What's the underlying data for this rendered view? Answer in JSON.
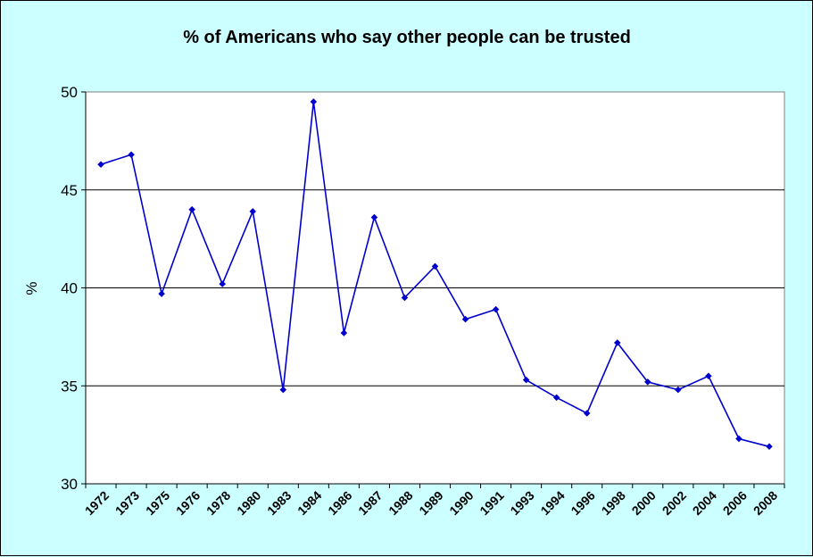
{
  "chart_data": {
    "type": "line",
    "title": "% of Americans who say other people can be trusted",
    "xlabel": "",
    "ylabel": "%",
    "ylim": [
      30,
      50
    ],
    "yticks": [
      30,
      35,
      40,
      45,
      50
    ],
    "grid": true,
    "legend": "none",
    "categories": [
      "1972",
      "1973",
      "1975",
      "1976",
      "1978",
      "1980",
      "1983",
      "1984",
      "1986",
      "1987",
      "1988",
      "1989",
      "1990",
      "1991",
      "1993",
      "1994",
      "1996",
      "1998",
      "2000",
      "2002",
      "2004",
      "2006",
      "2008"
    ],
    "series": [
      {
        "values": [
          46.3,
          46.8,
          39.7,
          44.0,
          40.2,
          43.9,
          34.8,
          49.5,
          37.7,
          43.6,
          39.5,
          41.1,
          38.4,
          38.9,
          35.3,
          34.4,
          33.6,
          37.2,
          35.2,
          34.8,
          35.5,
          32.3,
          31.9
        ]
      }
    ]
  },
  "colors": {
    "background": "#ccffff",
    "plot_area": "#ffffff",
    "series": "#0000cc",
    "gridline": "#000000"
  }
}
